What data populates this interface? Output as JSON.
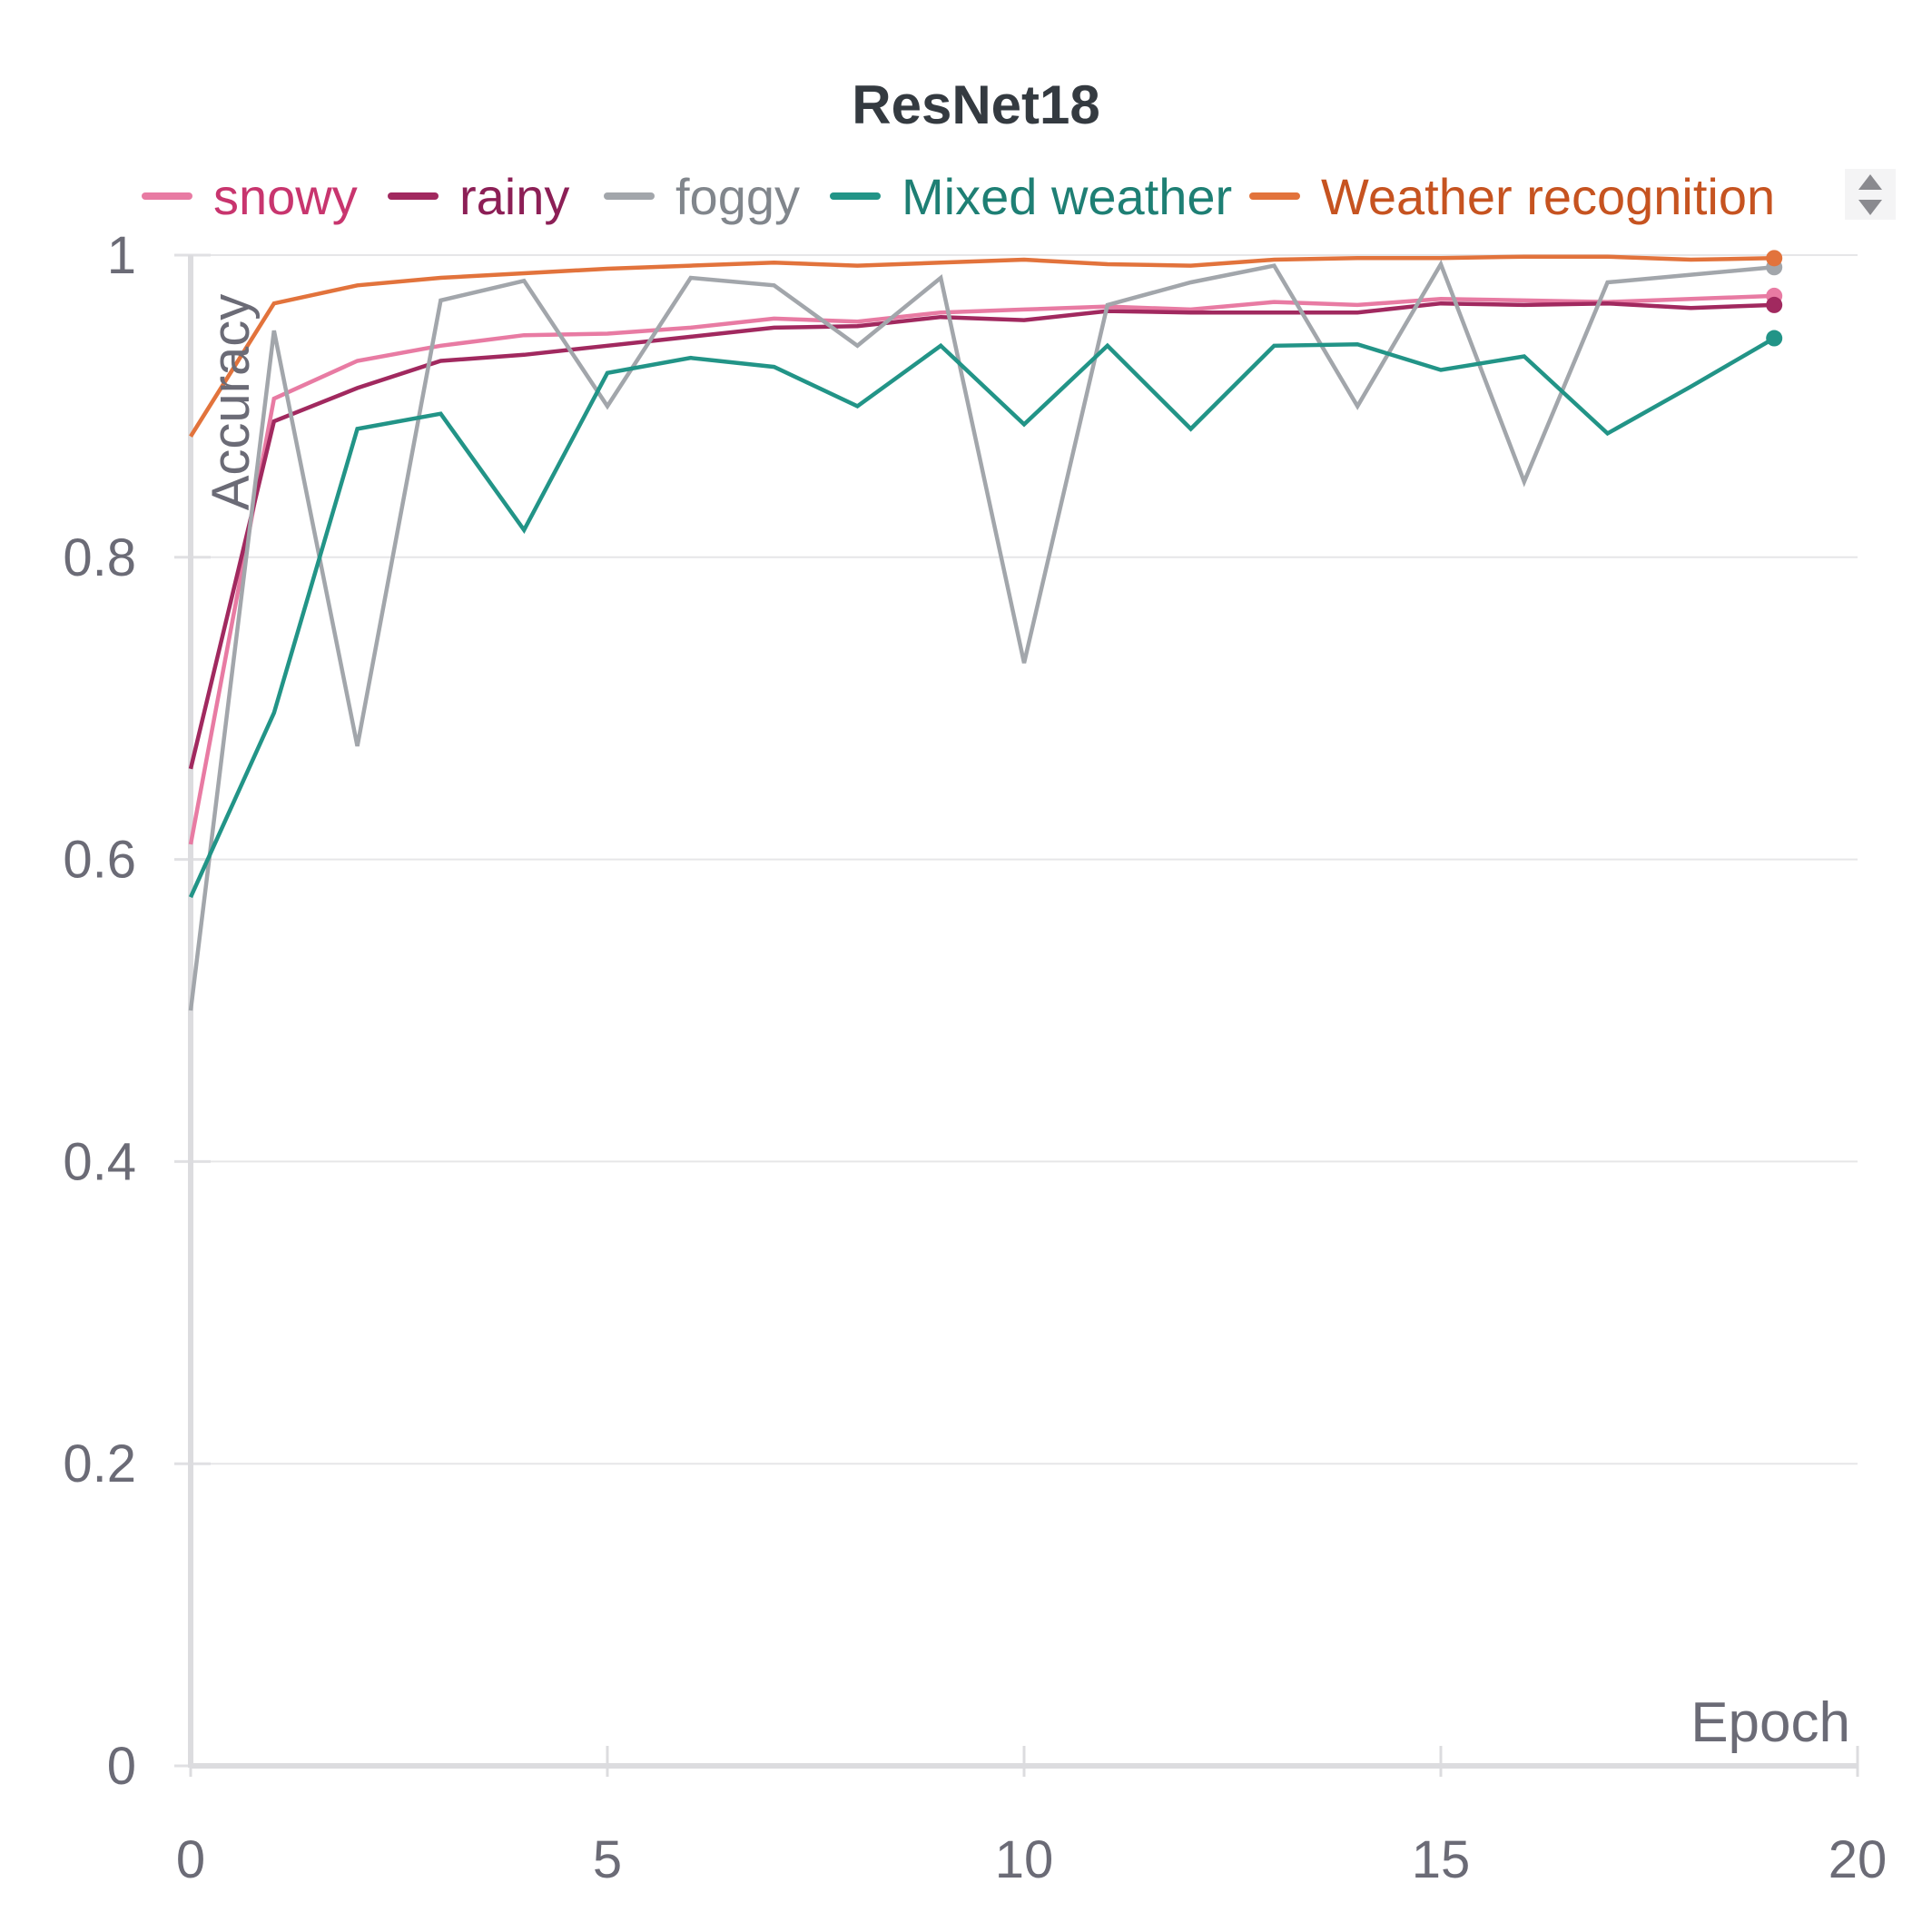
{
  "chart_data": {
    "type": "line",
    "title": "ResNet18",
    "xlabel": "Epoch",
    "ylabel": "Accuracy",
    "xlim": [
      0,
      20
    ],
    "ylim": [
      0,
      1
    ],
    "xticks": [
      "0",
      "5",
      "10",
      "15",
      "20"
    ],
    "yticks": [
      "0",
      "0.2",
      "0.4",
      "0.6",
      "0.8",
      "1"
    ],
    "grid": true,
    "legend_position": "top",
    "x": [
      0,
      1,
      2,
      3,
      4,
      5,
      6,
      7,
      8,
      9,
      10,
      11,
      12,
      13,
      14,
      15,
      16,
      17,
      18,
      19
    ],
    "series": [
      {
        "name": "snowy",
        "color": "#e87ba3",
        "values": [
          0.61,
          0.905,
          0.93,
          0.94,
          0.947,
          0.948,
          0.952,
          0.958,
          0.956,
          0.962,
          0.964,
          0.966,
          0.964,
          0.969,
          0.967,
          0.971,
          0.97,
          0.969,
          0.971,
          0.973
        ]
      },
      {
        "name": "rainy",
        "color": "#a1295f",
        "values": [
          0.66,
          0.89,
          0.912,
          0.93,
          0.934,
          0.94,
          0.946,
          0.952,
          0.953,
          0.959,
          0.957,
          0.963,
          0.962,
          0.962,
          0.962,
          0.968,
          0.967,
          0.968,
          0.965,
          0.967
        ]
      },
      {
        "name": "foggy",
        "color": "#a2a6ab",
        "values": [
          0.5,
          0.95,
          0.675,
          0.97,
          0.983,
          0.9,
          0.985,
          0.98,
          0.94,
          0.985,
          0.73,
          0.967,
          0.982,
          0.993,
          0.9,
          0.994,
          0.85,
          0.982,
          0.987,
          0.992
        ]
      },
      {
        "name": "Mixed weather",
        "color": "#229487",
        "values": [
          0.575,
          0.697,
          0.885,
          0.895,
          0.818,
          0.922,
          0.932,
          0.926,
          0.9,
          0.94,
          0.888,
          0.94,
          0.885,
          0.94,
          0.941,
          0.924,
          0.933,
          0.882,
          0.913,
          0.945
        ]
      },
      {
        "name": "Weather recognition",
        "color": "#e2733c",
        "values": [
          0.88,
          0.968,
          0.98,
          0.985,
          0.988,
          0.991,
          0.993,
          0.995,
          0.993,
          0.995,
          0.997,
          0.994,
          0.993,
          0.997,
          0.998,
          0.998,
          0.999,
          0.999,
          0.997,
          0.998
        ]
      }
    ],
    "legend_text_colors": {
      "snowy": "#c8356e",
      "rainy": "#8c1f56",
      "foggy": "#81868c",
      "Mixed weather": "#1e7f74",
      "Weather recognition": "#c65320"
    }
  }
}
